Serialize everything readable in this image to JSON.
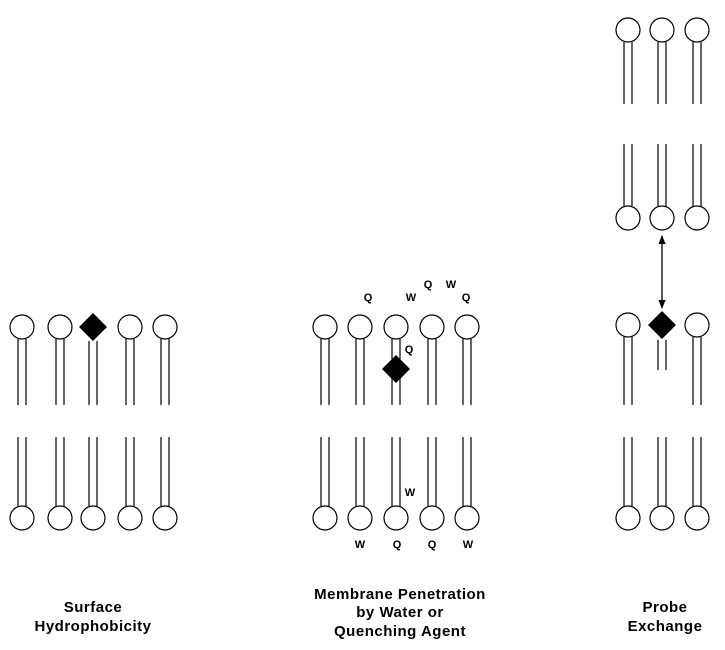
{
  "panels": [
    {
      "caption": [
        "Surface",
        "Hydrophobicity"
      ]
    },
    {
      "caption": [
        "Membrane Penetration",
        "by Water or",
        "Quenching Agent"
      ],
      "labels": [
        "Q",
        "W",
        "Q",
        "W",
        "Q",
        "Q",
        "W",
        "W",
        "Q",
        "Q",
        "W"
      ]
    },
    {
      "caption": [
        "Probe",
        "Exchange"
      ]
    }
  ]
}
